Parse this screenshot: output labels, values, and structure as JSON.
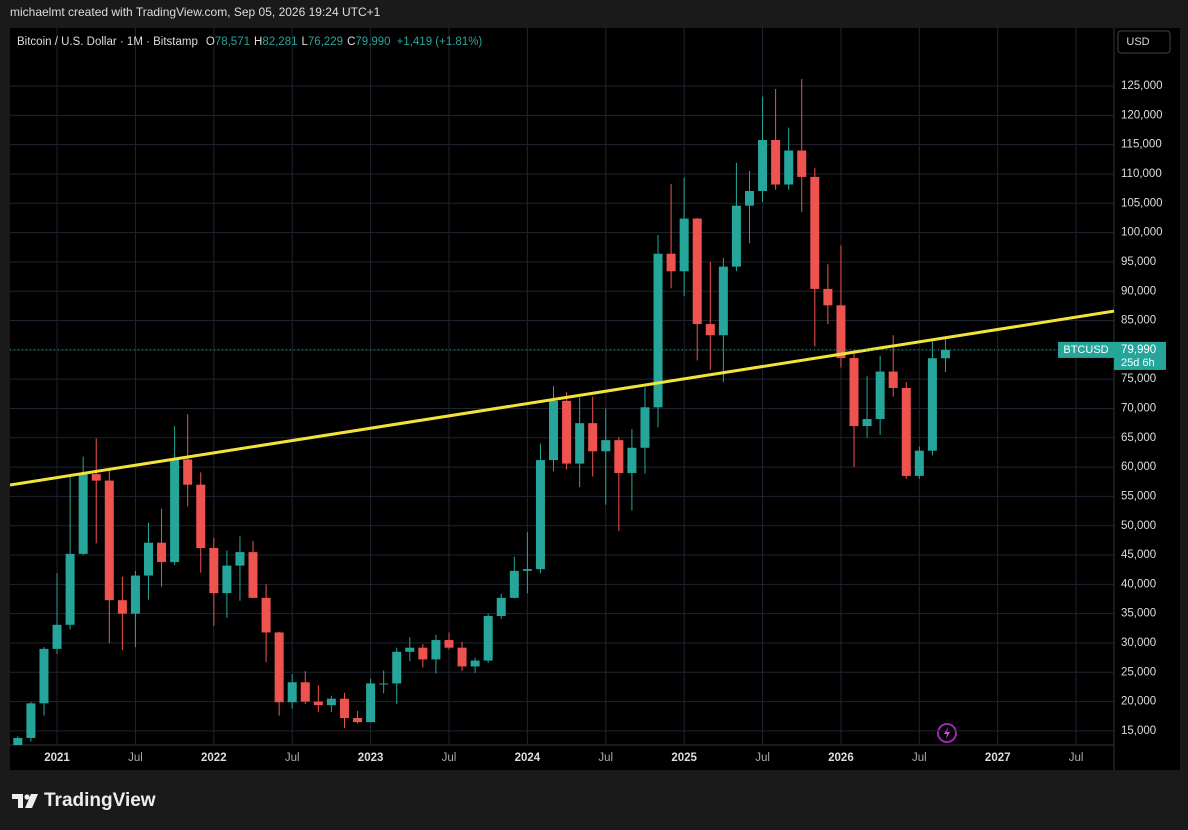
{
  "header": "michaelmt created with TradingView.com, Sep 05, 2026 19:24 UTC+1",
  "brand": "TradingView",
  "chart_data": {
    "type": "candlestick",
    "legend": {
      "title": "Bitcoin / U.S. Dollar · 1M · Bitstamp",
      "items": [
        {
          "key": "O",
          "value": "78,571"
        },
        {
          "key": "H",
          "value": "82,281"
        },
        {
          "key": "L",
          "value": "76,229"
        },
        {
          "key": "C",
          "value": "79,990"
        }
      ],
      "change": "+1,419 (+1.81%)"
    },
    "currency": "USD",
    "categories": [
      null,
      null,
      null,
      null,
      null,
      null,
      null,
      null,
      null,
      null,
      null,
      null,
      null,
      null,
      null,
      null,
      null,
      null,
      null,
      null,
      null,
      null,
      null,
      null,
      null,
      null,
      null,
      null,
      null,
      null,
      null,
      null,
      null,
      null,
      null,
      null,
      null,
      null,
      null,
      null,
      null,
      null,
      null,
      null,
      null,
      null,
      null,
      null,
      null,
      null,
      null,
      null,
      null,
      null,
      null,
      null,
      null,
      null,
      null,
      null,
      null,
      null,
      null,
      null,
      null,
      null,
      null,
      null,
      null,
      null,
      null,
      null
    ],
    "open": [
      10800,
      13800,
      19700,
      29000,
      33100,
      45200,
      58800,
      57700,
      37300,
      35000,
      41500,
      47100,
      43800,
      61300,
      57000,
      46200,
      38500,
      43200,
      45500,
      37700,
      31800,
      19900,
      23300,
      20000,
      19400,
      20500,
      17200,
      16500,
      23100,
      23100,
      28500,
      29200,
      27200,
      30500,
      29200,
      26000,
      27000,
      34600,
      37700,
      42300,
      42600,
      61200,
      71300,
      60600,
      67500,
      62700,
      64600,
      59000,
      63300,
      70200,
      96400,
      93400,
      102400,
      84400,
      82500,
      94200,
      104600,
      107100,
      115800,
      108200,
      114000,
      109500,
      90400,
      87600,
      78600,
      67000,
      68200,
      76300,
      73500,
      58500,
      62800,
      78571
    ],
    "high": [
      14100,
      19900,
      29300,
      41900,
      58300,
      61800,
      64900,
      59500,
      41300,
      42300,
      50500,
      52900,
      67000,
      69000,
      59100,
      47900,
      45800,
      48200,
      47400,
      40000,
      31900,
      24700,
      25200,
      22800,
      21000,
      21500,
      18400,
      23900,
      25300,
      29200,
      31000,
      29800,
      31400,
      31800,
      30200,
      27500,
      35000,
      38400,
      44700,
      48900,
      64000,
      73800,
      72800,
      71900,
      72000,
      70000,
      65100,
      66500,
      73600,
      99600,
      108300,
      109400,
      102500,
      95000,
      95700,
      111900,
      110500,
      123200,
      124500,
      117900,
      126200,
      111000,
      94600,
      97800,
      79500,
      75500,
      79000,
      82500,
      74500,
      63500,
      81500,
      82281
    ],
    "low": [
      10400,
      13200,
      17600,
      28100,
      32300,
      45000,
      47000,
      30000,
      28800,
      29300,
      37400,
      39600,
      43300,
      53300,
      42000,
      32900,
      34300,
      37200,
      37600,
      26700,
      17600,
      18800,
      19600,
      18200,
      18200,
      15500,
      16300,
      16500,
      21400,
      19600,
      26900,
      25800,
      24800,
      28900,
      25200,
      24900,
      26600,
      34100,
      37600,
      38500,
      41900,
      59300,
      59600,
      56600,
      58400,
      53600,
      49100,
      52600,
      58900,
      66800,
      90500,
      89200,
      78200,
      76600,
      74500,
      93400,
      98200,
      105200,
      107300,
      107300,
      103500,
      80600,
      84400,
      77000,
      60000,
      65000,
      65500,
      72000,
      58000,
      58000,
      62000,
      76229
    ],
    "close": [
      13800,
      19700,
      29000,
      33100,
      45200,
      58800,
      57700,
      37300,
      35000,
      41500,
      47100,
      43800,
      61300,
      57000,
      46200,
      38500,
      43200,
      45500,
      37700,
      31800,
      19900,
      23300,
      20000,
      19400,
      20500,
      17200,
      16500,
      23100,
      23100,
      28500,
      29200,
      27200,
      30500,
      29200,
      26000,
      27000,
      34600,
      37700,
      42300,
      42600,
      61200,
      71300,
      60600,
      67500,
      62700,
      64600,
      59000,
      63300,
      70200,
      96400,
      93400,
      102400,
      84400,
      82500,
      94200,
      104600,
      107100,
      115800,
      108200,
      114000,
      109500,
      90400,
      87600,
      78600,
      67000,
      68200,
      76300,
      73500,
      58500,
      62800,
      78571,
      79990
    ],
    "up_color": "#26a69a",
    "down_color": "#ef5350",
    "xlim": [
      -0.6,
      83.9
    ],
    "xticks": [
      {
        "value": 3,
        "label": "2021"
      },
      {
        "value": 9,
        "label": "Jul"
      },
      {
        "value": 15,
        "label": "2022"
      },
      {
        "value": 21,
        "label": "Jul"
      },
      {
        "value": 27,
        "label": "2023"
      },
      {
        "value": 33,
        "label": "Jul"
      },
      {
        "value": 39,
        "label": "2024"
      },
      {
        "value": 45,
        "label": "Jul"
      },
      {
        "value": 51,
        "label": "2025"
      },
      {
        "value": 57,
        "label": "Jul"
      },
      {
        "value": 63,
        "label": "2026"
      },
      {
        "value": 69,
        "label": "Jul"
      },
      {
        "value": 75,
        "label": "2027"
      },
      {
        "value": 81,
        "label": "Jul"
      }
    ],
    "ylim": [
      12600,
      134900
    ],
    "yticks": [
      {
        "value": 15000,
        "label": "15,000"
      },
      {
        "value": 20000,
        "label": "20,000"
      },
      {
        "value": 25000,
        "label": "25,000"
      },
      {
        "value": 30000,
        "label": "30,000"
      },
      {
        "value": 35000,
        "label": "35,000"
      },
      {
        "value": 40000,
        "label": "40,000"
      },
      {
        "value": 45000,
        "label": "45,000"
      },
      {
        "value": 50000,
        "label": "50,000"
      },
      {
        "value": 55000,
        "label": "55,000"
      },
      {
        "value": 60000,
        "label": "60,000"
      },
      {
        "value": 65000,
        "label": "65,000"
      },
      {
        "value": 70000,
        "label": "70,000"
      },
      {
        "value": 75000,
        "label": "75,000"
      },
      {
        "value": 80000,
        "label": "80,000"
      },
      {
        "value": 85000,
        "label": "85,000"
      },
      {
        "value": 90000,
        "label": "90,000"
      },
      {
        "value": 95000,
        "label": "95,000"
      },
      {
        "value": 100000,
        "label": "100,000"
      },
      {
        "value": 105000,
        "label": "105,000"
      },
      {
        "value": 110000,
        "label": "110,000"
      },
      {
        "value": 115000,
        "label": "115,000"
      },
      {
        "value": 120000,
        "label": "120,000"
      },
      {
        "value": 125000,
        "label": "125,000"
      }
    ],
    "grid": true,
    "trendline": {
      "color": "#f2e33b",
      "x": [
        -0.6,
        83.9
      ],
      "y": [
        56950,
        86600
      ]
    },
    "price_tag": {
      "symbol": "BTCUSD",
      "value": 79990,
      "label": "79,990",
      "countdown": "25d 6h"
    }
  }
}
